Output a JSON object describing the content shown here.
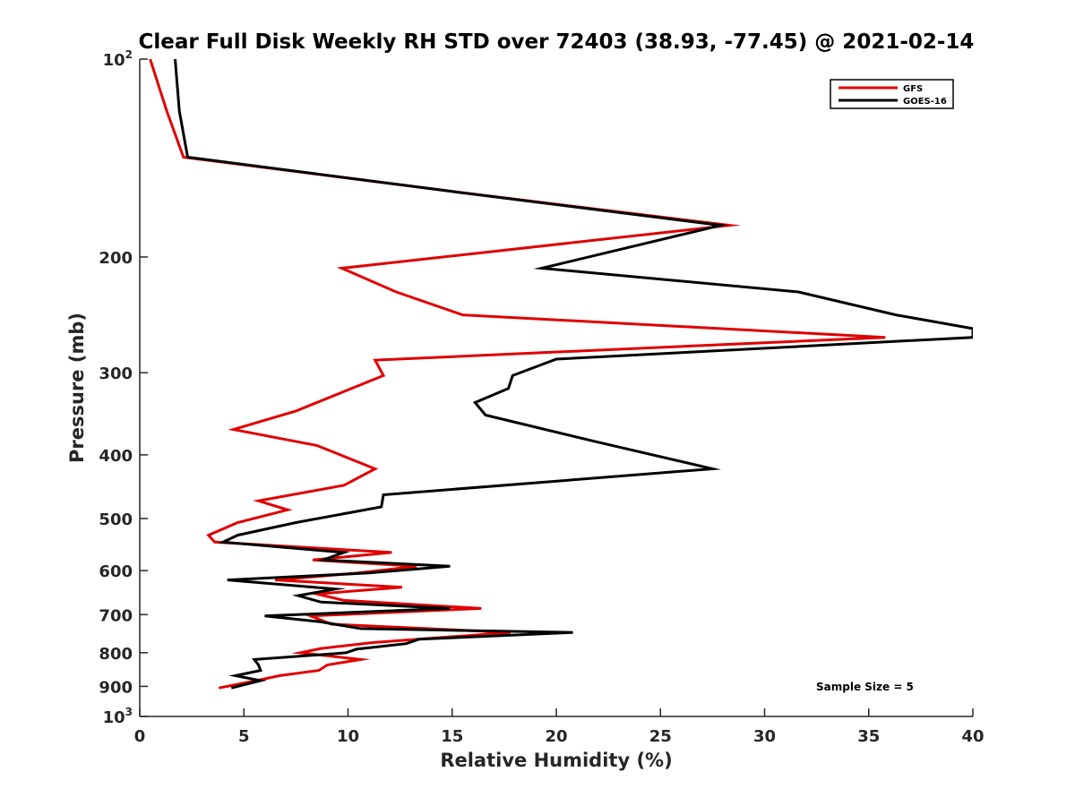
{
  "chart_data": {
    "type": "line",
    "title": "Clear Full Disk Weekly RH STD over 72403 (38.93, -77.45) @ 2021-02-14",
    "xlabel": "Relative Humidity (%)",
    "ylabel": "Pressure (mb)",
    "xlim": [
      0,
      40
    ],
    "ylim": [
      100,
      1000
    ],
    "y_scale": "log",
    "y_reversed": true,
    "x_ticks": [
      "0",
      "5",
      "10",
      "15",
      "20",
      "25",
      "30",
      "35",
      "40"
    ],
    "y_ticks": [
      {
        "value": 100,
        "base": "10",
        "exp": "2"
      },
      {
        "value": 200,
        "label": "200"
      },
      {
        "value": 300,
        "label": "300"
      },
      {
        "value": 400,
        "label": "400"
      },
      {
        "value": 500,
        "label": "500"
      },
      {
        "value": 600,
        "label": "600"
      },
      {
        "value": 700,
        "label": "700"
      },
      {
        "value": 800,
        "label": "800"
      },
      {
        "value": 900,
        "label": "900"
      },
      {
        "value": 1000,
        "base": "10",
        "exp": "3"
      }
    ],
    "grid": false,
    "legend_position": "top-right",
    "annotation": "Sample Size = 5",
    "series": [
      {
        "name": "GFS",
        "color": "#e00000",
        "points": [
          [
            0.5,
            100
          ],
          [
            1.3,
            120
          ],
          [
            2.1,
            141
          ],
          [
            15.0,
            159
          ],
          [
            28.3,
            179
          ],
          [
            9.7,
            208
          ],
          [
            12.3,
            226
          ],
          [
            15.5,
            245
          ],
          [
            35.8,
            265
          ],
          [
            11.3,
            287
          ],
          [
            11.7,
            303
          ],
          [
            7.5,
            343
          ],
          [
            4.5,
            366
          ],
          [
            8.5,
            387
          ],
          [
            11.3,
            420
          ],
          [
            9.8,
            445
          ],
          [
            5.7,
            470
          ],
          [
            7.1,
            485
          ],
          [
            4.7,
            507
          ],
          [
            3.3,
            530
          ],
          [
            3.6,
            543
          ],
          [
            12.1,
            563
          ],
          [
            8.3,
            578
          ],
          [
            13.3,
            591
          ],
          [
            10.5,
            605
          ],
          [
            6.5,
            620
          ],
          [
            12.6,
            636
          ],
          [
            8.5,
            651
          ],
          [
            9.8,
            666
          ],
          [
            16.4,
            685
          ],
          [
            8.2,
            703
          ],
          [
            9.2,
            724
          ],
          [
            17.8,
            745
          ],
          [
            11.2,
            772
          ],
          [
            8.7,
            788
          ],
          [
            7.7,
            800
          ],
          [
            10.6,
            819
          ],
          [
            9.0,
            835
          ],
          [
            8.6,
            851
          ],
          [
            6.7,
            867
          ],
          [
            5.6,
            882
          ],
          [
            3.8,
            905
          ]
        ]
      },
      {
        "name": "GOES-16",
        "color": "#000000",
        "points": [
          [
            1.7,
            100
          ],
          [
            1.9,
            120
          ],
          [
            2.3,
            141
          ],
          [
            15.0,
            159
          ],
          [
            27.9,
            179
          ],
          [
            19.3,
            208
          ],
          [
            31.6,
            226
          ],
          [
            36.3,
            245
          ],
          [
            40.0,
            257
          ],
          [
            40.0,
            265
          ],
          [
            20.0,
            286
          ],
          [
            17.9,
            303
          ],
          [
            17.7,
            317
          ],
          [
            16.1,
            333
          ],
          [
            16.6,
            348
          ],
          [
            21.9,
            382
          ],
          [
            27.5,
            420
          ],
          [
            11.7,
            460
          ],
          [
            11.6,
            480
          ],
          [
            7.5,
            507
          ],
          [
            4.7,
            530
          ],
          [
            4.0,
            543
          ],
          [
            9.8,
            563
          ],
          [
            8.8,
            578
          ],
          [
            14.9,
            591
          ],
          [
            11.0,
            605
          ],
          [
            4.2,
            620
          ],
          [
            9.4,
            640
          ],
          [
            7.6,
            655
          ],
          [
            8.7,
            670
          ],
          [
            14.9,
            685
          ],
          [
            6.0,
            703
          ],
          [
            8.7,
            718
          ],
          [
            10.6,
            735
          ],
          [
            20.8,
            745
          ],
          [
            13.4,
            763
          ],
          [
            12.8,
            775
          ],
          [
            10.4,
            790
          ],
          [
            9.9,
            800
          ],
          [
            5.5,
            819
          ],
          [
            5.7,
            835
          ],
          [
            5.8,
            851
          ],
          [
            4.6,
            867
          ],
          [
            5.8,
            882
          ],
          [
            4.4,
            905
          ]
        ]
      }
    ]
  }
}
